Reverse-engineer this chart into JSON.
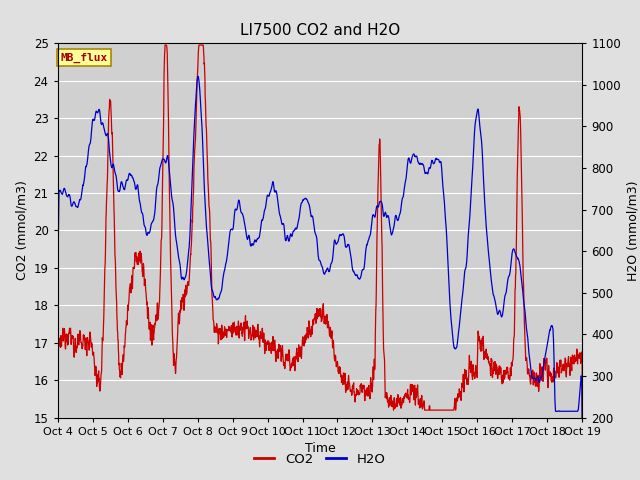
{
  "title": "LI7500 CO2 and H2O",
  "xlabel": "Time",
  "ylabel_left": "CO2 (mmol/m3)",
  "ylabel_right": "H2O (mmol/m3)",
  "ylim_left": [
    15.0,
    25.0
  ],
  "ylim_right": [
    200,
    1100
  ],
  "yticks_left": [
    15.0,
    16.0,
    17.0,
    18.0,
    19.0,
    20.0,
    21.0,
    22.0,
    23.0,
    24.0,
    25.0
  ],
  "yticks_right": [
    200,
    300,
    400,
    500,
    600,
    700,
    800,
    900,
    1000,
    1100
  ],
  "xtick_labels": [
    "Oct 4",
    "Oct 5",
    "Oct 6",
    "Oct 7",
    "Oct 8",
    "Oct 9",
    "Oct 10",
    "Oct 11",
    "Oct 12",
    "Oct 13",
    "Oct 14",
    "Oct 15",
    "Oct 16",
    "Oct 17",
    "Oct 18",
    "Oct 19"
  ],
  "color_co2": "#cc0000",
  "color_h2o": "#0000cc",
  "bg_color": "#e0e0e0",
  "plot_bg_color": "#d0d0d0",
  "annotation_text": "MB_flux",
  "annotation_bg": "#ffff99",
  "annotation_border": "#aa8800",
  "legend_labels": [
    "CO2",
    "H2O"
  ],
  "title_fontsize": 11,
  "axis_label_fontsize": 9,
  "tick_fontsize": 8.5
}
